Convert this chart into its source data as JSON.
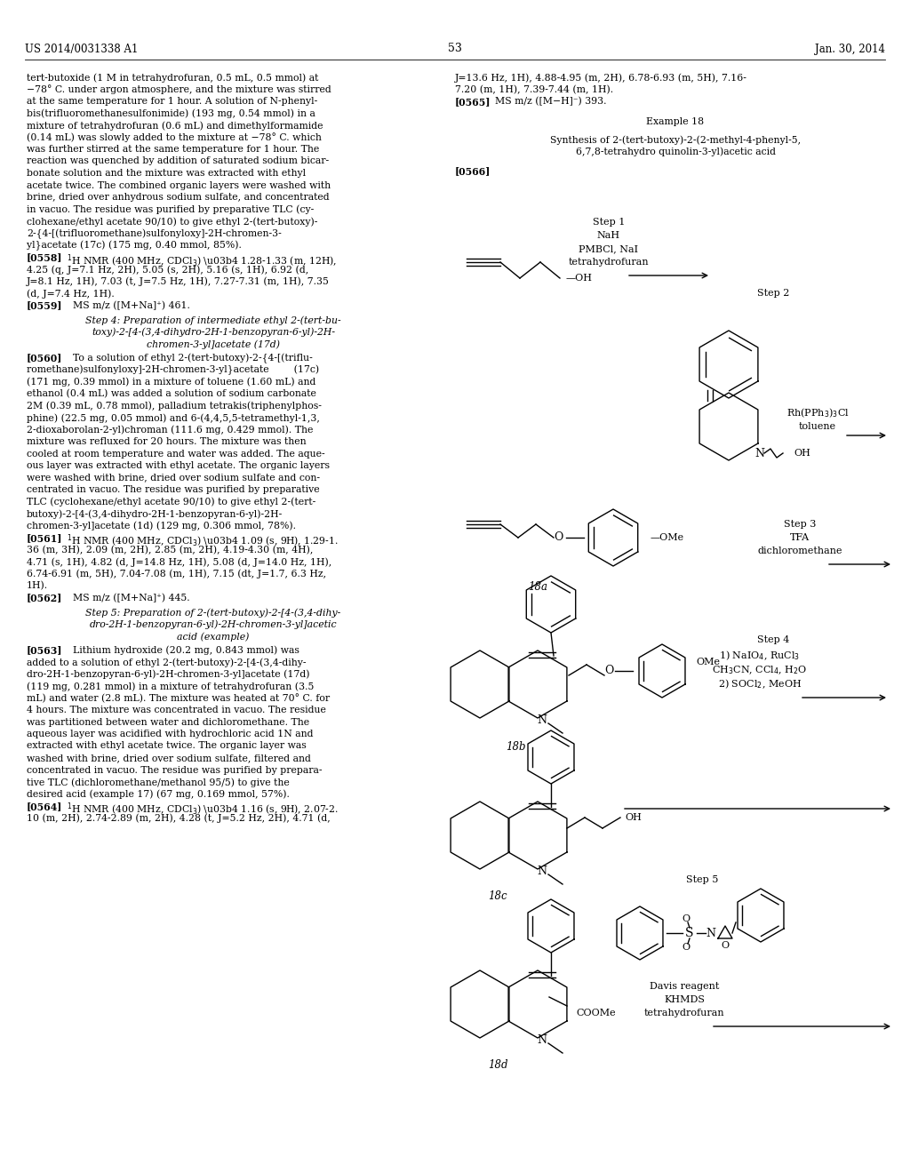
{
  "page_header_left": "US 2014/0031338 A1",
  "page_header_right": "Jan. 30, 2014",
  "page_number": "53",
  "background_color": "#ffffff",
  "text_color": "#000000",
  "figsize": [
    10.24,
    13.2
  ],
  "dpi": 100
}
